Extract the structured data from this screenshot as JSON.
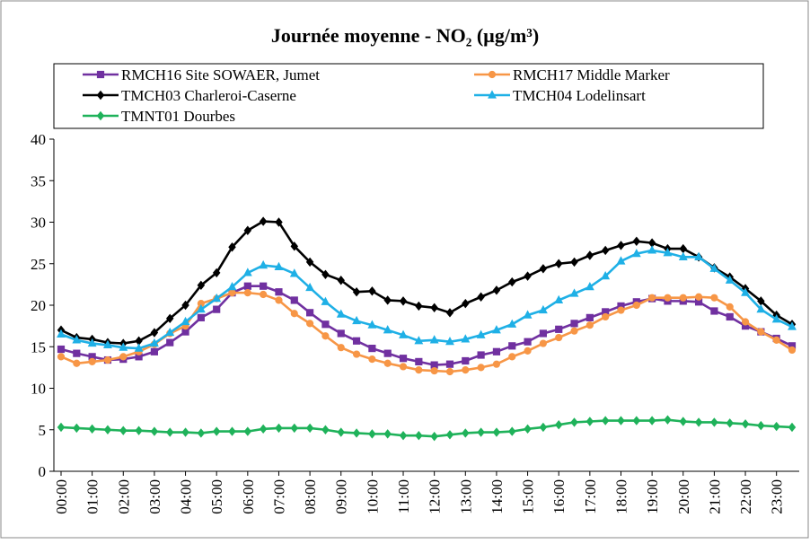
{
  "chart_data": {
    "type": "line",
    "title": "Journée moyenne - NO₂ (µg/m³)",
    "categories": [
      "00:00",
      null,
      "01:00",
      null,
      "02:00",
      null,
      "03:00",
      null,
      "04:00",
      null,
      "05:00",
      null,
      "06:00",
      null,
      "07:00",
      null,
      "08:00",
      null,
      "09:00",
      null,
      "10:00",
      null,
      "11:00",
      null,
      "12:00",
      null,
      "13:00",
      null,
      "14:00",
      null,
      "15:00",
      null,
      "16:00",
      null,
      "17:00",
      null,
      "18:00",
      null,
      "19:00",
      null,
      "20:00",
      null,
      "21:00",
      null,
      "22:00",
      null,
      "23:00",
      null
    ],
    "series": [
      {
        "name": "RMCH16 Site SOWAER, Jumet",
        "color": "#7030a0",
        "marker": "square",
        "values": [
          14.7,
          14.2,
          13.8,
          13.4,
          13.5,
          13.8,
          14.4,
          15.5,
          16.8,
          18.5,
          19.5,
          21.5,
          22.3,
          22.3,
          21.6,
          20.6,
          19.1,
          17.7,
          16.6,
          15.7,
          14.8,
          14.2,
          13.6,
          13.2,
          12.8,
          12.9,
          13.3,
          14.0,
          14.4,
          15.1,
          15.6,
          16.6,
          17.1,
          17.8,
          18.5,
          19.2,
          19.9,
          20.4,
          20.8,
          20.5,
          20.5,
          20.4,
          19.3,
          18.6,
          17.5,
          16.8,
          16.0,
          15.1
        ]
      },
      {
        "name": "RMCH17 Middle Marker",
        "color": "#f79646",
        "marker": "circle",
        "values": [
          13.8,
          13.0,
          13.2,
          13.4,
          13.8,
          14.4,
          15.3,
          16.6,
          17.5,
          20.2,
          20.8,
          21.5,
          21.5,
          21.3,
          20.6,
          19.0,
          17.8,
          16.3,
          14.9,
          14.1,
          13.5,
          13.0,
          12.6,
          12.2,
          12.1,
          12.0,
          12.2,
          12.5,
          12.9,
          13.8,
          14.5,
          15.4,
          16.1,
          16.9,
          17.6,
          18.6,
          19.4,
          20.0,
          20.9,
          20.9,
          20.9,
          21.0,
          20.9,
          19.8,
          18.0,
          16.8,
          15.8,
          14.6
        ]
      },
      {
        "name": "TMCH03 Charleroi-Caserne",
        "color": "#000000",
        "marker": "diamond",
        "values": [
          17.0,
          16.1,
          15.9,
          15.5,
          15.4,
          15.7,
          16.7,
          18.4,
          20.0,
          22.4,
          23.9,
          27.0,
          29.0,
          30.1,
          30.0,
          27.1,
          25.2,
          23.7,
          23.0,
          21.6,
          21.7,
          20.6,
          20.5,
          19.9,
          19.7,
          19.1,
          20.2,
          21.0,
          21.8,
          22.8,
          23.5,
          24.4,
          25.0,
          25.2,
          26.0,
          26.6,
          27.2,
          27.7,
          27.5,
          26.8,
          26.8,
          25.8,
          24.5,
          23.4,
          22.0,
          20.5,
          18.8,
          17.7
        ]
      },
      {
        "name": "TMCH04 Lodelinsart",
        "color": "#1fb0e6",
        "marker": "triangle",
        "values": [
          16.5,
          15.8,
          15.4,
          15.2,
          14.9,
          14.8,
          15.4,
          16.7,
          18.0,
          19.5,
          20.8,
          22.2,
          23.9,
          24.8,
          24.6,
          23.8,
          22.1,
          20.4,
          18.9,
          18.1,
          17.6,
          17.0,
          16.4,
          15.7,
          15.8,
          15.6,
          15.9,
          16.4,
          17.0,
          17.7,
          18.8,
          19.4,
          20.6,
          21.4,
          22.2,
          23.5,
          25.3,
          26.2,
          26.6,
          26.3,
          25.8,
          25.8,
          24.4,
          23.0,
          21.5,
          19.5,
          18.3,
          17.4
        ]
      },
      {
        "name": "TMNT01 Dourbes",
        "color": "#1fb25a",
        "marker": "diamond",
        "values": [
          5.3,
          5.2,
          5.1,
          5.0,
          4.9,
          4.9,
          4.8,
          4.7,
          4.7,
          4.6,
          4.8,
          4.8,
          4.8,
          5.1,
          5.2,
          5.2,
          5.2,
          5.0,
          4.7,
          4.6,
          4.5,
          4.5,
          4.3,
          4.3,
          4.2,
          4.4,
          4.6,
          4.7,
          4.7,
          4.8,
          5.1,
          5.3,
          5.6,
          5.9,
          6.0,
          6.1,
          6.1,
          6.1,
          6.1,
          6.2,
          6.0,
          5.9,
          5.9,
          5.8,
          5.7,
          5.5,
          5.4,
          5.3
        ]
      }
    ],
    "ylim": [
      0,
      40
    ],
    "yticks": [
      0,
      5,
      10,
      15,
      20,
      25,
      30,
      35,
      40
    ],
    "legend": "top"
  }
}
